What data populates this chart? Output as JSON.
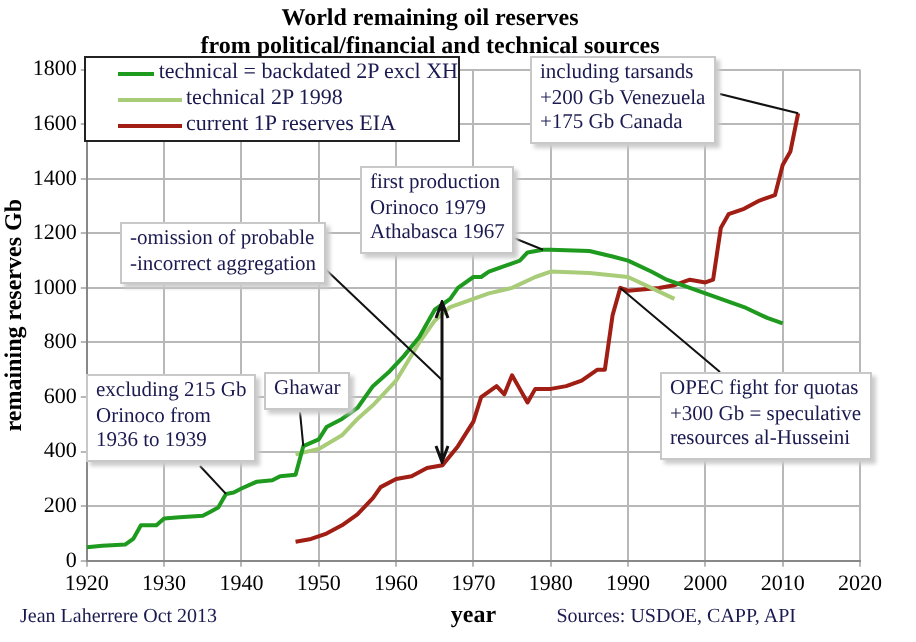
{
  "chart_data": {
    "type": "line",
    "title": "World remaining oil reserves\nfrom political/financial and technical sources",
    "xlabel": "year",
    "ylabel": "remaining reserves Gb",
    "xlim": [
      1920,
      2020
    ],
    "xticks": [
      1920,
      1930,
      1940,
      1950,
      1960,
      1970,
      1980,
      1990,
      2000,
      2010,
      2020
    ],
    "ylim": [
      0,
      1800
    ],
    "yticks": [
      0,
      200,
      400,
      600,
      800,
      1000,
      1200,
      1400,
      1600,
      1800
    ],
    "grid": true,
    "legend": "top left",
    "marker": "none",
    "line_style": "solid",
    "series": [
      {
        "name": "technical = backdated 2P excl XH",
        "color": "#1e9a1e",
        "x": [
          1920,
          1922,
          1925,
          1926,
          1927,
          1929,
          1930,
          1932,
          1935,
          1936,
          1937,
          1938,
          1939,
          1940,
          1942,
          1944,
          1945,
          1947,
          1948,
          1950,
          1951,
          1953,
          1955,
          1957,
          1959,
          1961,
          1963,
          1965,
          1967,
          1968,
          1970,
          1971,
          1972,
          1974,
          1976,
          1977,
          1979,
          1980,
          1985,
          1988,
          1990,
          1993,
          1995,
          1998,
          2000,
          2003,
          2005,
          2008,
          2010
        ],
        "values": [
          50,
          55,
          60,
          80,
          130,
          130,
          155,
          160,
          165,
          180,
          195,
          245,
          250,
          265,
          290,
          295,
          310,
          315,
          420,
          445,
          490,
          520,
          560,
          640,
          690,
          750,
          820,
          920,
          960,
          1000,
          1040,
          1040,
          1060,
          1080,
          1100,
          1130,
          1140,
          1140,
          1135,
          1115,
          1100,
          1060,
          1030,
          1000,
          980,
          950,
          930,
          890,
          870
        ]
      },
      {
        "name": "technical 2P 1998",
        "color": "#a8cc78",
        "x": [
          1947,
          1950,
          1953,
          1955,
          1957,
          1960,
          1963,
          1965,
          1967,
          1970,
          1972,
          1975,
          1978,
          1980,
          1985,
          1990,
          1993,
          1996
        ],
        "values": [
          390,
          410,
          460,
          520,
          570,
          660,
          800,
          880,
          930,
          960,
          980,
          1000,
          1040,
          1060,
          1055,
          1040,
          1000,
          960
        ]
      },
      {
        "name": "current 1P reserves EIA",
        "color": "#a01e14",
        "x": [
          1947,
          1949,
          1951,
          1953,
          1955,
          1957,
          1958,
          1960,
          1962,
          1964,
          1966,
          1968,
          1970,
          1971,
          1972,
          1973,
          1974,
          1975,
          1976,
          1977,
          1978,
          1980,
          1982,
          1984,
          1986,
          1987,
          1988,
          1989,
          1990,
          1994,
          1996,
          1998,
          2000,
          2001,
          2002,
          2003,
          2005,
          2007,
          2009,
          2010,
          2011,
          2012
        ],
        "values": [
          70,
          80,
          100,
          130,
          170,
          230,
          270,
          300,
          310,
          340,
          350,
          420,
          510,
          600,
          620,
          640,
          610,
          680,
          630,
          580,
          630,
          630,
          640,
          660,
          700,
          700,
          900,
          1000,
          990,
          1000,
          1010,
          1030,
          1020,
          1030,
          1220,
          1270,
          1290,
          1320,
          1340,
          1450,
          1500,
          1640
        ]
      }
    ],
    "annotations": [
      {
        "text": "excluding 215 Gb\nOrinoco from\n1936 to 1939",
        "x": 1938,
        "y": 245
      },
      {
        "text": "Ghawar",
        "x": 1948,
        "y": 420
      },
      "-omission of probable\n-incorrect aggregation",
      {
        "text": "first production\nOrinoco 1979\nAthabasca 1967",
        "x": 1979,
        "y": 1140
      },
      {
        "text": "including tarsands\n+200 Gb Venezuela\n+175 Gb Canada",
        "x": 2012,
        "y": 1640
      },
      {
        "text": "OPEC fight for quotas\n+300 Gb = speculative\nresources al-Husseini",
        "x": 1989,
        "y": 1000
      },
      "Jean Laherrere Oct 2013",
      "Sources: USDOE, CAPP, API"
    ]
  }
}
